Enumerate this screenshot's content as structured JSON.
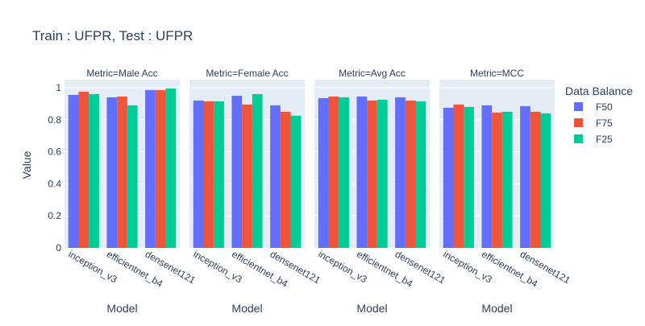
{
  "chart_data": {
    "type": "bar",
    "title": "Train : UFPR, Test : UFPR",
    "ylabel": "Value",
    "xlabel": "Model",
    "ylim": [
      0,
      1.05
    ],
    "yticks": [
      0,
      0.2,
      0.4,
      0.6,
      0.8,
      1
    ],
    "ytick_labels": [
      "0",
      "0.2",
      "0.4",
      "0.6",
      "0.8",
      "1"
    ],
    "grid": true,
    "legend": {
      "title": "Data Balance",
      "placement": "right",
      "items": [
        {
          "name": "F50",
          "color": "#636efa"
        },
        {
          "name": "F75",
          "color": "#ef553b"
        },
        {
          "name": "F25",
          "color": "#00cc96"
        }
      ]
    },
    "categories": [
      "inception_v3",
      "efficientnet_b4",
      "densenet121"
    ],
    "facets": [
      {
        "title": "Metric=Male Acc",
        "series": [
          {
            "name": "F50",
            "values": [
              0.955,
              0.94,
              0.985
            ]
          },
          {
            "name": "F75",
            "values": [
              0.975,
              0.945,
              0.985
            ]
          },
          {
            "name": "F25",
            "values": [
              0.96,
              0.89,
              0.995
            ]
          }
        ]
      },
      {
        "title": "Metric=Female Acc",
        "series": [
          {
            "name": "F50",
            "values": [
              0.92,
              0.95,
              0.89
            ]
          },
          {
            "name": "F75",
            "values": [
              0.915,
              0.895,
              0.85
            ]
          },
          {
            "name": "F25",
            "values": [
              0.915,
              0.96,
              0.825
            ]
          }
        ]
      },
      {
        "title": "Metric=Avg Acc",
        "series": [
          {
            "name": "F50",
            "values": [
              0.935,
              0.945,
              0.94
            ]
          },
          {
            "name": "F75",
            "values": [
              0.945,
              0.92,
              0.92
            ]
          },
          {
            "name": "F25",
            "values": [
              0.94,
              0.925,
              0.915
            ]
          }
        ]
      },
      {
        "title": "Metric=MCC",
        "series": [
          {
            "name": "F50",
            "values": [
              0.875,
              0.89,
              0.885
            ]
          },
          {
            "name": "F75",
            "values": [
              0.895,
              0.845,
              0.85
            ]
          },
          {
            "name": "F25",
            "values": [
              0.88,
              0.85,
              0.84
            ]
          }
        ]
      }
    ]
  },
  "colors": {
    "plot_bg": "#e5ecf6",
    "grid": "#ffffff",
    "text": "#2a3f5f"
  }
}
